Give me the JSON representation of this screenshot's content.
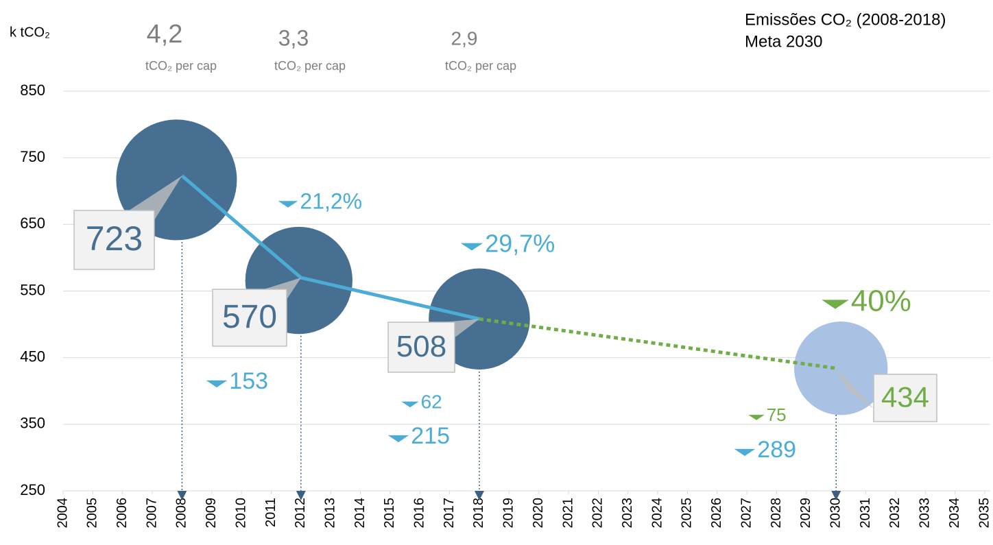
{
  "chart_data": {
    "type": "bubble",
    "y_label": "k tCO₂",
    "xlim": [
      2004,
      2035
    ],
    "xticks": [
      2004,
      2005,
      2006,
      2007,
      2008,
      2009,
      2010,
      2011,
      2012,
      2013,
      2014,
      2015,
      2016,
      2017,
      2018,
      2019,
      2020,
      2021,
      2022,
      2023,
      2024,
      2025,
      2026,
      2027,
      2028,
      2029,
      2030,
      2031,
      2032,
      2033,
      2034,
      2035
    ],
    "ylim": [
      250,
      850
    ],
    "yticks": [
      250,
      350,
      450,
      550,
      650,
      750,
      850
    ],
    "grid": true,
    "series": [
      {
        "name": "Emissões CO₂ (2008-2018)",
        "color": "#466f91",
        "line_color": "#4bacd6",
        "x": [
          2008,
          2012,
          2018
        ],
        "values": [
          723,
          570,
          508
        ],
        "sizes": [
          723,
          570,
          508
        ]
      },
      {
        "name": "Meta 2030",
        "color": "#a9c1e2",
        "line_color": "#70ad47",
        "x": [
          2030
        ],
        "values": [
          434
        ],
        "sizes": [
          434
        ]
      }
    ],
    "per_capita": [
      "4,2",
      "3,3",
      "2,9"
    ],
    "per_capita_unit": "tCO₂ per cap",
    "annotations": [
      "21,2%",
      "29,7%",
      "40%",
      "153",
      "62",
      "215",
      "75",
      "289"
    ]
  }
}
